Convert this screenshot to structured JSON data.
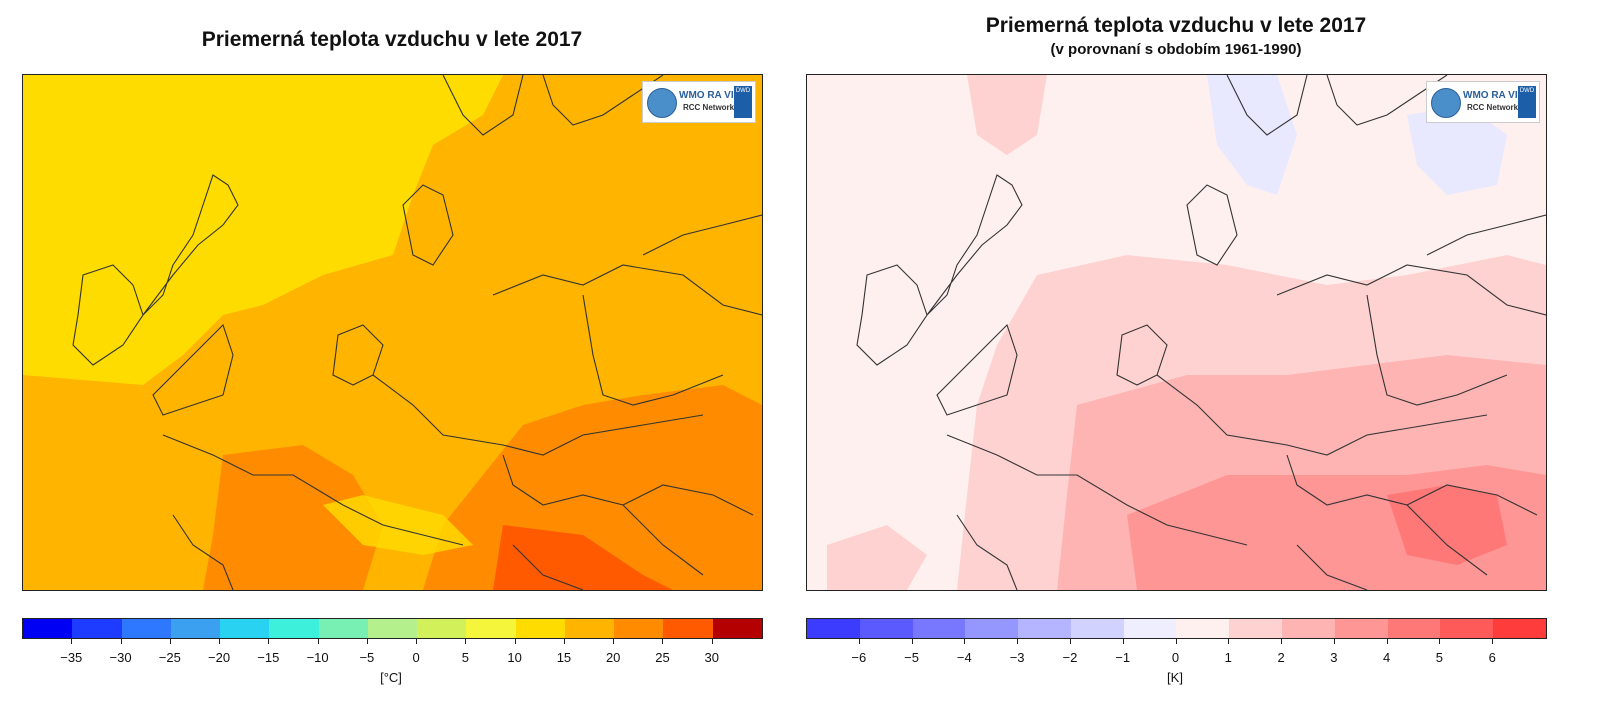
{
  "left": {
    "title": "Priemerná teplota vzduchu v lete 2017",
    "logo": {
      "wmo": "WMO RA VI",
      "rcc": "RCC Network",
      "dwd": "DWD",
      "icon": "wmo-globe-icon"
    },
    "colorbar": {
      "colors": [
        "#0000f5",
        "#1e3cff",
        "#2e78ff",
        "#3ca0f0",
        "#28d2f0",
        "#3cf0dc",
        "#78f0b4",
        "#b4f08c",
        "#d2f05a",
        "#f5f53c",
        "#ffdc00",
        "#ffb400",
        "#ff8c00",
        "#ff5a00",
        "#b40000"
      ],
      "ticks": [
        "−35",
        "−30",
        "−25",
        "−20",
        "−15",
        "−10",
        "−5",
        "0",
        "5",
        "10",
        "15",
        "20",
        "25",
        "30"
      ],
      "unit": "[°C]"
    }
  },
  "right": {
    "title": "Priemerná teplota vzduchu v lete 2017",
    "subtitle": "(v porovnaní s obdobím 1961-1990)",
    "logo": {
      "wmo": "WMO RA VI",
      "rcc": "RCC Network",
      "dwd": "DWD",
      "icon": "wmo-globe-icon"
    },
    "colorbar": {
      "colors": [
        "#3c3cff",
        "#5a5aff",
        "#7878ff",
        "#9696ff",
        "#b4b4ff",
        "#d2d2ff",
        "#eeeeff",
        "#fff0f0",
        "#ffd2d2",
        "#ffb4b4",
        "#ff9696",
        "#ff7878",
        "#ff5a5a",
        "#ff3c3c"
      ],
      "ticks": [
        "−6",
        "−5",
        "−4",
        "−3",
        "−2",
        "−1",
        "0",
        "1",
        "2",
        "3",
        "4",
        "5",
        "6"
      ],
      "unit": "[K]"
    }
  }
}
